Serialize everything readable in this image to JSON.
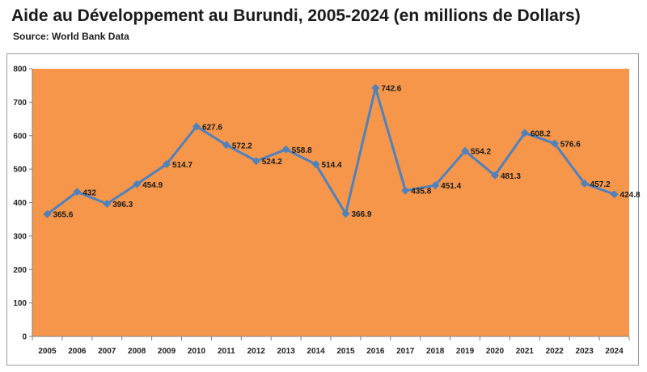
{
  "header": {
    "title": "Aide au Développement au Burundi, 2005-2024 (en millions de Dollars)",
    "source": "Source: World Bank Data"
  },
  "chart_data": {
    "type": "line",
    "title": "Aide au Développement au Burundi, 2005-2024 (en millions de Dollars)",
    "subtitle": "Source: World Bank Data",
    "xlabel": "",
    "ylabel": "",
    "categories": [
      "2005",
      "2006",
      "2007",
      "2008",
      "2009",
      "2010",
      "2011",
      "2012",
      "2013",
      "2014",
      "2015",
      "2016",
      "2017",
      "2018",
      "2019",
      "2020",
      "2021",
      "2022",
      "2023",
      "2024"
    ],
    "series": [
      {
        "values": [
          365.6,
          432,
          396.3,
          454.9,
          514.7,
          627.6,
          572.2,
          524.2,
          558.8,
          514.4,
          366.9,
          742.6,
          435.8,
          451.4,
          554.2,
          481.3,
          608.2,
          576.6,
          457.2,
          424.8
        ],
        "labels": [
          "365.6",
          "432",
          "396.3",
          "454.9",
          "514.7",
          "627.6",
          "572.2",
          "524.2",
          "558.8",
          "514.4",
          "366.9",
          "742.6",
          "435.8",
          "451.4",
          "554.2",
          "481.3",
          "608.2",
          "576.6",
          "457.2",
          "424.8"
        ]
      }
    ],
    "ylim": [
      0,
      800
    ],
    "yticks": [
      0,
      100,
      200,
      300,
      400,
      500,
      600,
      700,
      800
    ],
    "grid": false,
    "legend": "none",
    "colors": {
      "plot_background": "#f5964a",
      "line": "#4f81bd",
      "marker": "#4f81bd"
    }
  }
}
